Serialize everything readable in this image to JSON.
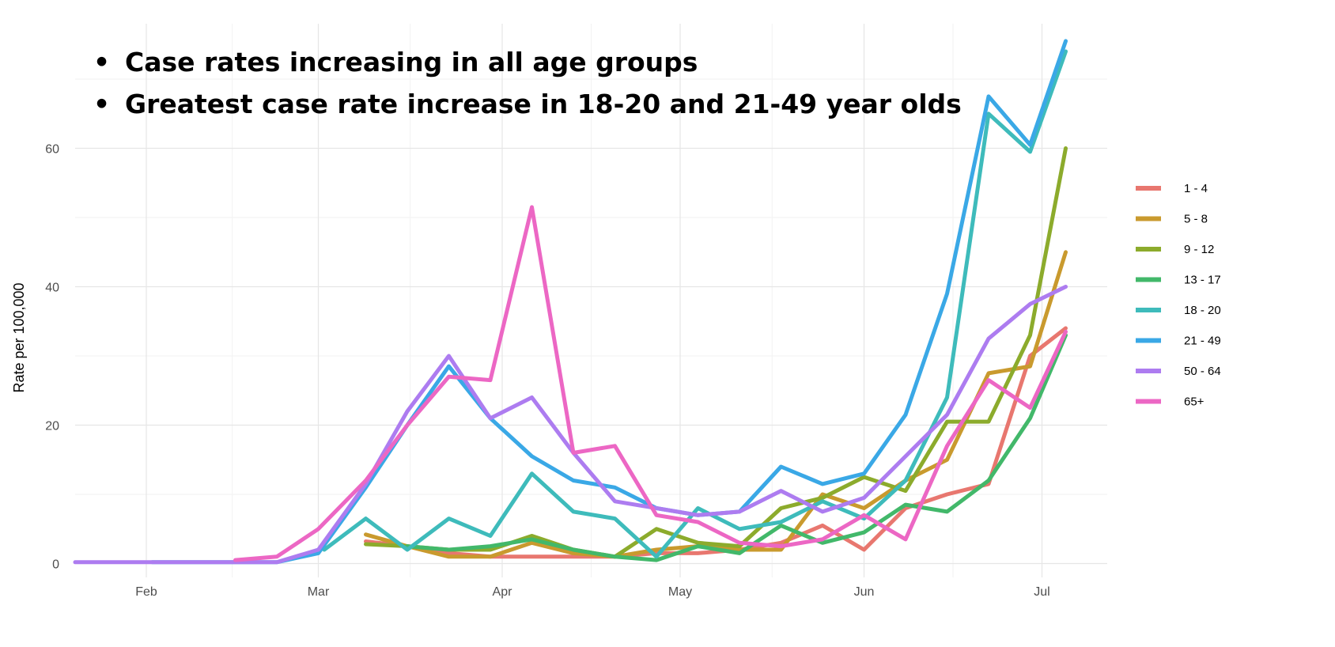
{
  "annotations": [
    "Case rates increasing in all age groups",
    "Greatest case rate increase in 18-20 and 21-49 year olds"
  ],
  "chart_data": {
    "type": "line",
    "title": "",
    "xlabel": "",
    "ylabel": "Rate per 100,000",
    "x_axis": {
      "type": "date",
      "range": [
        "2020-01-20",
        "2020-07-12"
      ],
      "ticks": [
        "2020-02-01",
        "2020-03-01",
        "2020-04-01",
        "2020-05-01",
        "2020-06-01",
        "2020-07-01"
      ],
      "tick_labels": [
        "Feb",
        "Mar",
        "Apr",
        "May",
        "Jun",
        "Jul"
      ]
    },
    "ylim": [
      -2,
      78
    ],
    "y_ticks": [
      0,
      20,
      40,
      60
    ],
    "grid": true,
    "legend_position": "right",
    "series": [
      {
        "name": "1 - 4",
        "color": "#e8776f",
        "points": [
          [
            "2020-03-09",
            3.2
          ],
          [
            "2020-03-16",
            2.5
          ],
          [
            "2020-03-23",
            1.5
          ],
          [
            "2020-03-30",
            1.0
          ],
          [
            "2020-04-06",
            1.0
          ],
          [
            "2020-04-13",
            1.0
          ],
          [
            "2020-04-20",
            1.0
          ],
          [
            "2020-04-27",
            1.5
          ],
          [
            "2020-05-04",
            1.5
          ],
          [
            "2020-05-11",
            2.0
          ],
          [
            "2020-05-18",
            3.0
          ],
          [
            "2020-05-25",
            5.5
          ],
          [
            "2020-06-01",
            2.0
          ],
          [
            "2020-06-08",
            8.0
          ],
          [
            "2020-06-15",
            10.0
          ],
          [
            "2020-06-22",
            11.5
          ],
          [
            "2020-06-29",
            30.0
          ],
          [
            "2020-07-05",
            34.0
          ]
        ]
      },
      {
        "name": "5 - 8",
        "color": "#c99a2e",
        "points": [
          [
            "2020-03-09",
            4.2
          ],
          [
            "2020-03-16",
            2.5
          ],
          [
            "2020-03-23",
            1.0
          ],
          [
            "2020-03-30",
            1.0
          ],
          [
            "2020-04-06",
            3.0
          ],
          [
            "2020-04-13",
            1.5
          ],
          [
            "2020-04-20",
            1.0
          ],
          [
            "2020-04-27",
            2.0
          ],
          [
            "2020-05-04",
            2.5
          ],
          [
            "2020-05-11",
            2.0
          ],
          [
            "2020-05-18",
            2.0
          ],
          [
            "2020-05-25",
            10.0
          ],
          [
            "2020-06-01",
            8.0
          ],
          [
            "2020-06-08",
            12.0
          ],
          [
            "2020-06-15",
            15.0
          ],
          [
            "2020-06-22",
            27.5
          ],
          [
            "2020-06-29",
            28.5
          ],
          [
            "2020-07-05",
            45.0
          ]
        ]
      },
      {
        "name": "9 - 12",
        "color": "#8cab2c",
        "points": [
          [
            "2020-03-09",
            2.8
          ],
          [
            "2020-03-16",
            2.5
          ],
          [
            "2020-03-23",
            2.0
          ],
          [
            "2020-03-30",
            2.0
          ],
          [
            "2020-04-06",
            4.0
          ],
          [
            "2020-04-13",
            2.0
          ],
          [
            "2020-04-20",
            1.0
          ],
          [
            "2020-04-27",
            5.0
          ],
          [
            "2020-05-04",
            3.0
          ],
          [
            "2020-05-11",
            2.5
          ],
          [
            "2020-05-18",
            8.0
          ],
          [
            "2020-05-25",
            9.5
          ],
          [
            "2020-06-01",
            12.5
          ],
          [
            "2020-06-08",
            10.5
          ],
          [
            "2020-06-15",
            20.5
          ],
          [
            "2020-06-22",
            20.5
          ],
          [
            "2020-06-29",
            33.0
          ],
          [
            "2020-07-05",
            60.0
          ]
        ]
      },
      {
        "name": "13 - 17",
        "color": "#42b86a",
        "points": [
          [
            "2020-03-16",
            2.5
          ],
          [
            "2020-03-23",
            2.0
          ],
          [
            "2020-03-30",
            2.5
          ],
          [
            "2020-04-06",
            3.5
          ],
          [
            "2020-04-13",
            2.0
          ],
          [
            "2020-04-20",
            1.0
          ],
          [
            "2020-04-27",
            0.5
          ],
          [
            "2020-05-04",
            2.5
          ],
          [
            "2020-05-11",
            1.5
          ],
          [
            "2020-05-18",
            5.5
          ],
          [
            "2020-05-25",
            3.0
          ],
          [
            "2020-06-01",
            4.5
          ],
          [
            "2020-06-08",
            8.5
          ],
          [
            "2020-06-15",
            7.5
          ],
          [
            "2020-06-22",
            12.0
          ],
          [
            "2020-06-29",
            21.0
          ],
          [
            "2020-07-05",
            33.0
          ]
        ]
      },
      {
        "name": "18 - 20",
        "color": "#3ebbbb",
        "points": [
          [
            "2020-03-02",
            2.0
          ],
          [
            "2020-03-09",
            6.5
          ],
          [
            "2020-03-16",
            2.0
          ],
          [
            "2020-03-23",
            6.5
          ],
          [
            "2020-03-30",
            4.0
          ],
          [
            "2020-04-06",
            13.0
          ],
          [
            "2020-04-13",
            7.5
          ],
          [
            "2020-04-20",
            6.5
          ],
          [
            "2020-04-27",
            1.0
          ],
          [
            "2020-05-04",
            8.0
          ],
          [
            "2020-05-11",
            5.0
          ],
          [
            "2020-05-18",
            6.0
          ],
          [
            "2020-05-25",
            9.0
          ],
          [
            "2020-06-01",
            6.5
          ],
          [
            "2020-06-08",
            12.0
          ],
          [
            "2020-06-15",
            24.0
          ],
          [
            "2020-06-22",
            65.0
          ],
          [
            "2020-06-29",
            59.5
          ],
          [
            "2020-07-05",
            74.0
          ]
        ]
      },
      {
        "name": "21 - 49",
        "color": "#3aa8e6",
        "points": [
          [
            "2020-02-02",
            0.2
          ],
          [
            "2020-02-09",
            0.2
          ],
          [
            "2020-02-16",
            0.2
          ],
          [
            "2020-02-23",
            0.2
          ],
          [
            "2020-03-01",
            1.5
          ],
          [
            "2020-03-09",
            11.0
          ],
          [
            "2020-03-16",
            20.0
          ],
          [
            "2020-03-23",
            28.5
          ],
          [
            "2020-03-30",
            21.0
          ],
          [
            "2020-04-06",
            15.5
          ],
          [
            "2020-04-13",
            12.0
          ],
          [
            "2020-04-20",
            11.0
          ],
          [
            "2020-04-27",
            8.0
          ],
          [
            "2020-05-04",
            7.0
          ],
          [
            "2020-05-11",
            7.5
          ],
          [
            "2020-05-18",
            14.0
          ],
          [
            "2020-05-25",
            11.5
          ],
          [
            "2020-06-01",
            13.0
          ],
          [
            "2020-06-08",
            21.5
          ],
          [
            "2020-06-15",
            39.0
          ],
          [
            "2020-06-22",
            67.5
          ],
          [
            "2020-06-29",
            60.5
          ],
          [
            "2020-07-05",
            75.5
          ]
        ]
      },
      {
        "name": "50 - 64",
        "color": "#ad7cf0",
        "points": [
          [
            "2020-01-20",
            0.2
          ],
          [
            "2020-02-02",
            0.2
          ],
          [
            "2020-02-09",
            0.2
          ],
          [
            "2020-02-16",
            0.2
          ],
          [
            "2020-02-23",
            0.2
          ],
          [
            "2020-03-01",
            2.0
          ],
          [
            "2020-03-09",
            11.5
          ],
          [
            "2020-03-16",
            22.0
          ],
          [
            "2020-03-23",
            30.0
          ],
          [
            "2020-03-30",
            21.0
          ],
          [
            "2020-04-06",
            24.0
          ],
          [
            "2020-04-13",
            16.0
          ],
          [
            "2020-04-20",
            9.0
          ],
          [
            "2020-04-27",
            8.0
          ],
          [
            "2020-05-04",
            7.0
          ],
          [
            "2020-05-11",
            7.5
          ],
          [
            "2020-05-18",
            10.5
          ],
          [
            "2020-05-25",
            7.5
          ],
          [
            "2020-06-01",
            9.5
          ],
          [
            "2020-06-08",
            15.5
          ],
          [
            "2020-06-15",
            21.5
          ],
          [
            "2020-06-22",
            32.5
          ],
          [
            "2020-06-29",
            37.5
          ],
          [
            "2020-07-05",
            40.0
          ]
        ]
      },
      {
        "name": "65+",
        "color": "#ec67c4",
        "points": [
          [
            "2020-02-16",
            0.5
          ],
          [
            "2020-02-23",
            1.0
          ],
          [
            "2020-03-01",
            5.0
          ],
          [
            "2020-03-09",
            12.0
          ],
          [
            "2020-03-16",
            20.0
          ],
          [
            "2020-03-23",
            27.0
          ],
          [
            "2020-03-30",
            26.5
          ],
          [
            "2020-04-06",
            51.5
          ],
          [
            "2020-04-13",
            16.0
          ],
          [
            "2020-04-20",
            17.0
          ],
          [
            "2020-04-27",
            7.0
          ],
          [
            "2020-05-04",
            6.0
          ],
          [
            "2020-05-11",
            3.0
          ],
          [
            "2020-05-18",
            2.5
          ],
          [
            "2020-05-25",
            3.5
          ],
          [
            "2020-06-01",
            7.0
          ],
          [
            "2020-06-08",
            3.5
          ],
          [
            "2020-06-15",
            17.0
          ],
          [
            "2020-06-22",
            26.5
          ],
          [
            "2020-06-29",
            22.5
          ],
          [
            "2020-07-05",
            33.5
          ]
        ]
      }
    ]
  }
}
